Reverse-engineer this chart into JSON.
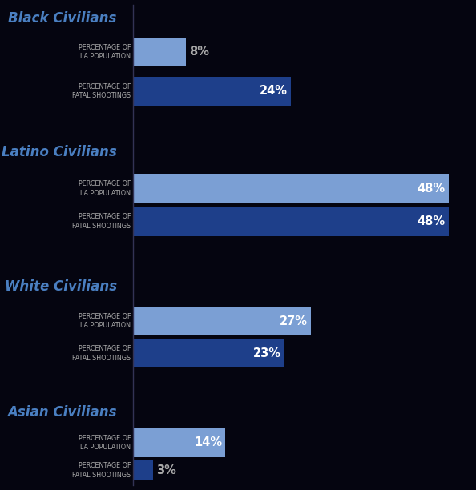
{
  "background_color": "#050510",
  "groups": [
    {
      "title": "Black Civilians",
      "title_color": "#4a7fc1",
      "bars": [
        {
          "label": "PERCENTAGE OF\nLA POPULATION",
          "value": 8,
          "color": "#7b9fd4"
        },
        {
          "label": "PERCENTAGE OF\nFATAL SHOOTINGS",
          "value": 24,
          "color": "#1e3f8a"
        }
      ]
    },
    {
      "title": "Latino Civilians",
      "title_color": "#4a7fc1",
      "bars": [
        {
          "label": "PERCENTAGE OF\nLA POPULATION",
          "value": 48,
          "color": "#7b9fd4"
        },
        {
          "label": "PERCENTAGE OF\nFATAL SHOOTINGS",
          "value": 48,
          "color": "#1e3f8a"
        }
      ]
    },
    {
      "title": "White Civilians",
      "title_color": "#4a7fc1",
      "bars": [
        {
          "label": "PERCENTAGE OF\nLA POPULATION",
          "value": 27,
          "color": "#7b9fd4"
        },
        {
          "label": "PERCENTAGE OF\nFATAL SHOOTINGS",
          "value": 23,
          "color": "#1e3f8a"
        }
      ]
    },
    {
      "title": "Asian Civilians",
      "title_color": "#4a7fc1",
      "bars": [
        {
          "label": "PERCENTAGE OF\nLA POPULATION",
          "value": 14,
          "color": "#7b9fd4"
        },
        {
          "label": "PERCENTAGE OF\nFATAL SHOOTINGS",
          "value": 3,
          "color": "#1e3f8a"
        }
      ]
    }
  ],
  "label_color": "#aaaaaa",
  "value_color_inside": "#ffffff",
  "value_color_outside": "#aaaaaa",
  "max_value": 50,
  "label_fontsize": 5.8,
  "title_fontsize": 12.0,
  "value_fontsize": 10.5,
  "divider_color": "#333355"
}
